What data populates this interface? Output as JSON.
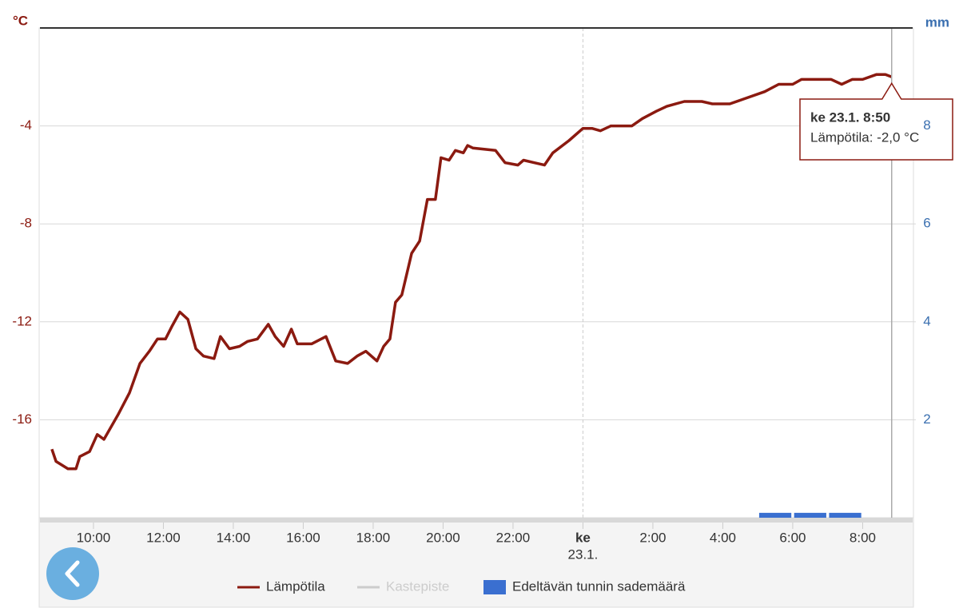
{
  "chart_data": {
    "type": "line",
    "y_unit": "°C",
    "y2_unit": "mm",
    "xlim": [
      8.47,
      33.43
    ],
    "xticks": [
      {
        "value": 10,
        "label": "10:00"
      },
      {
        "value": 12,
        "label": "12:00"
      },
      {
        "value": 14,
        "label": "14:00"
      },
      {
        "value": 16,
        "label": "16:00"
      },
      {
        "value": 18,
        "label": "18:00"
      },
      {
        "value": 20,
        "label": "20:00"
      },
      {
        "value": 22,
        "label": "22:00"
      },
      {
        "value": 24,
        "label": "ke",
        "sublabel": "23.1."
      },
      {
        "value": 26,
        "label": "2:00"
      },
      {
        "value": 28,
        "label": "4:00"
      },
      {
        "value": 30,
        "label": "6:00"
      },
      {
        "value": 32,
        "label": "8:00"
      }
    ],
    "ylim": [
      -20,
      0
    ],
    "yticks": [
      -16,
      -12,
      -8,
      -4
    ],
    "y2lim": [
      0,
      10
    ],
    "y2ticks": [
      2,
      4,
      6,
      8
    ],
    "grid": true,
    "series": [
      {
        "name": "Lämpötila",
        "color": "#8b1a10",
        "type": "line",
        "x": [
          8.81,
          8.93,
          9.27,
          9.5,
          9.61,
          9.89,
          10.11,
          10.3,
          10.7,
          11.03,
          11.33,
          11.6,
          11.83,
          12.06,
          12.24,
          12.47,
          12.7,
          12.93,
          13.15,
          13.45,
          13.63,
          13.89,
          14.18,
          14.41,
          14.69,
          15.0,
          15.2,
          15.44,
          15.66,
          15.83,
          16.24,
          16.65,
          16.93,
          17.27,
          17.54,
          17.79,
          18.11,
          18.3,
          18.48,
          18.64,
          18.82,
          19.1,
          19.33,
          19.55,
          19.78,
          19.94,
          20.17,
          20.35,
          20.58,
          20.7,
          20.85,
          21.5,
          21.77,
          22.14,
          22.3,
          22.6,
          22.9,
          23.14,
          23.6,
          24.0,
          24.26,
          24.5,
          24.8,
          25.1,
          25.4,
          25.7,
          26.1,
          26.4,
          26.9,
          27.4,
          27.7,
          28.2,
          28.6,
          29.2,
          29.6,
          30.0,
          30.25,
          31.1,
          31.4,
          31.7,
          32.0,
          32.4,
          32.65,
          32.83
        ],
        "values": [
          -17.2,
          -17.7,
          -18.0,
          -18.0,
          -17.5,
          -17.3,
          -16.6,
          -16.8,
          -15.8,
          -14.9,
          -13.7,
          -13.2,
          -12.7,
          -12.7,
          -12.2,
          -11.6,
          -11.9,
          -13.1,
          -13.4,
          -13.5,
          -12.6,
          -13.1,
          -13.0,
          -12.8,
          -12.7,
          -12.1,
          -12.6,
          -13.0,
          -12.3,
          -12.9,
          -12.9,
          -12.6,
          -13.6,
          -13.7,
          -13.4,
          -13.2,
          -13.6,
          -13.0,
          -12.7,
          -11.2,
          -10.9,
          -9.2,
          -8.7,
          -7.0,
          -7.0,
          -5.3,
          -5.4,
          -5.0,
          -5.1,
          -4.8,
          -4.9,
          -5.0,
          -5.5,
          -5.6,
          -5.4,
          -5.5,
          -5.6,
          -5.1,
          -4.6,
          -4.1,
          -4.1,
          -4.2,
          -4.0,
          -4.0,
          -4.0,
          -3.7,
          -3.4,
          -3.2,
          -3.0,
          -3.0,
          -3.1,
          -3.1,
          -2.9,
          -2.6,
          -2.3,
          -2.3,
          -2.1,
          -2.1,
          -2.3,
          -2.1,
          -2.1,
          -1.9,
          -1.9,
          -2.0
        ]
      },
      {
        "name": "Kastepiste",
        "color": "#cccccc",
        "type": "line",
        "visible": false
      },
      {
        "name": "Edeltävän tunnin sademäärä",
        "color": "#3a6fd0",
        "type": "bar",
        "axis": "y2",
        "x": [
          29.5,
          30.5,
          31.5
        ],
        "values": [
          0.1,
          0.1,
          0.1
        ]
      }
    ],
    "tooltip": {
      "title": "ke 23.1. 8:50",
      "text": "Lämpötila: -2,0 °C",
      "x": 32.83,
      "value": -2.0
    }
  }
}
